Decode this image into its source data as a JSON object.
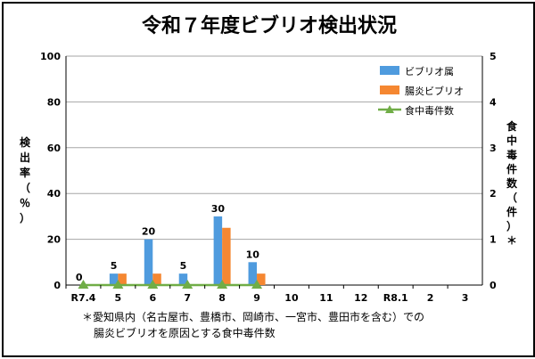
{
  "chart_data": {
    "type": "bar",
    "title": "令和７年度ビブリオ検出状況",
    "categories": [
      "R7.4",
      "5",
      "6",
      "7",
      "8",
      "9",
      "10",
      "11",
      "12",
      "R8.1",
      "2",
      "3"
    ],
    "series": [
      {
        "name": "ビブリオ属",
        "type": "bar",
        "axis": "left",
        "color": "#4F9BDE",
        "values": [
          0,
          5,
          20,
          5,
          30,
          10,
          null,
          null,
          null,
          null,
          null,
          null
        ]
      },
      {
        "name": "腸炎ビブリオ",
        "type": "bar",
        "axis": "left",
        "color": "#F58731",
        "values": [
          0,
          5,
          5,
          0,
          25,
          5,
          null,
          null,
          null,
          null,
          null,
          null
        ]
      },
      {
        "name": "食中毒件数",
        "type": "line",
        "axis": "right",
        "color": "#70AD47",
        "values": [
          0,
          0,
          0,
          0,
          0,
          0,
          null,
          null,
          null,
          null,
          null,
          null
        ]
      }
    ],
    "data_labels": [
      "0",
      "5",
      "20",
      "5",
      "30",
      "10"
    ],
    "ylabel": "検出率（％）",
    "y2label": "食中毒件数（件）＊",
    "ylim": [
      0,
      100
    ],
    "yticks": [
      "0",
      "20",
      "40",
      "60",
      "80",
      "100"
    ],
    "y2lim": [
      0,
      5
    ],
    "y2ticks": [
      "0",
      "1",
      "2",
      "3",
      "4",
      "5"
    ],
    "grid": true,
    "legend_position": "top-right",
    "footnote": [
      "＊愛知県内（名古屋市、豊橋市、岡崎市、一宮市、豊田市を含む）での",
      "腸炎ビブリオを原因とする食中毒件数"
    ]
  }
}
